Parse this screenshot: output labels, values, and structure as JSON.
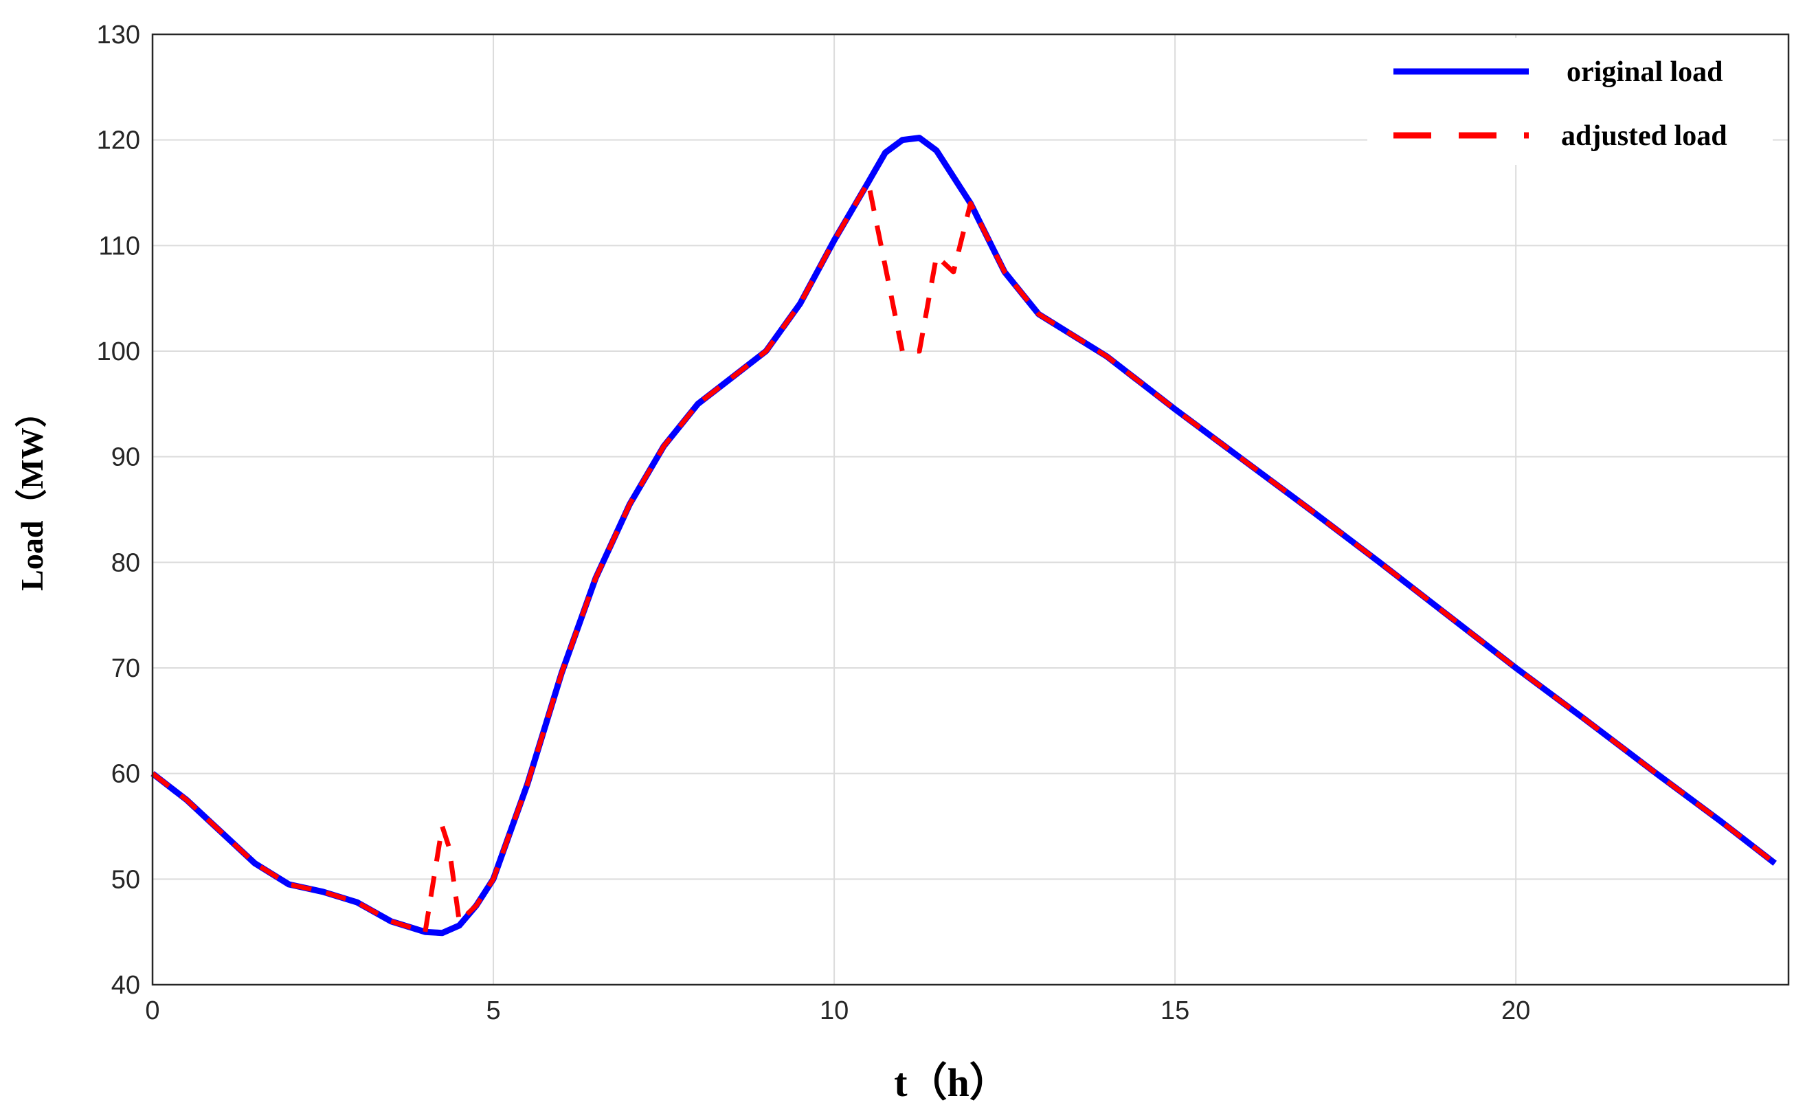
{
  "chart_data": {
    "type": "line",
    "xlabel": "t（h）",
    "ylabel": "Load（MW）",
    "xlim": [
      0,
      24
    ],
    "ylim": [
      40,
      130
    ],
    "xticks": [
      0,
      5,
      10,
      15,
      20
    ],
    "yticks": [
      40,
      50,
      60,
      70,
      80,
      90,
      100,
      110,
      120,
      130
    ],
    "grid": true,
    "legend_position": "top-right",
    "series": [
      {
        "name": "original load",
        "color": "#0000ff",
        "style": "solid",
        "x": [
          0,
          0.5,
          1,
          1.5,
          2,
          2.5,
          3,
          3.5,
          4,
          4.25,
          4.5,
          4.75,
          5,
          5.5,
          6,
          6.5,
          7,
          7.5,
          8,
          8.5,
          9,
          9.5,
          10,
          10.5,
          10.75,
          11,
          11.25,
          11.5,
          12,
          12.5,
          13,
          13.5,
          14,
          15,
          16,
          17,
          18,
          19,
          20,
          21,
          22,
          23,
          23.8
        ],
        "y": [
          60,
          57.5,
          54.5,
          51.5,
          49.5,
          48.8,
          47.8,
          46,
          45,
          44.9,
          45.6,
          47.5,
          50,
          59,
          69.5,
          78.5,
          85.5,
          91,
          95,
          97.5,
          100,
          104.5,
          110.5,
          116,
          118.8,
          120,
          120.2,
          119,
          114,
          107.5,
          103.5,
          101.5,
          99.5,
          94.5,
          89.7,
          84.9,
          80,
          75,
          70,
          65.2,
          60.3,
          55.5,
          51.5
        ]
      },
      {
        "name": "adjusted load",
        "color": "#ff0000",
        "style": "dashed",
        "x": [
          0,
          0.5,
          1,
          1.5,
          2,
          2.5,
          3,
          3.5,
          4,
          4.25,
          4.35,
          4.5,
          4.75,
          5,
          5.5,
          6,
          6.5,
          7,
          7.5,
          8,
          8.5,
          9,
          9.5,
          10,
          10.5,
          11,
          11.25,
          11.5,
          11.75,
          12,
          12.5,
          13,
          13.5,
          14,
          15,
          16,
          17,
          18,
          19,
          20,
          21,
          22,
          23,
          23.8
        ],
        "y": [
          60,
          57.5,
          54.5,
          51.5,
          49.5,
          48.8,
          47.8,
          46,
          45,
          55,
          53,
          46,
          47.5,
          50,
          59,
          69.5,
          78.5,
          85.5,
          91,
          95,
          97.5,
          100,
          104.5,
          110.5,
          116,
          100,
          100,
          109,
          107.5,
          114,
          107.5,
          103.5,
          101.5,
          99.5,
          94.5,
          89.7,
          84.9,
          80,
          75,
          70,
          65.2,
          60.3,
          55.5,
          51.5
        ]
      }
    ]
  }
}
